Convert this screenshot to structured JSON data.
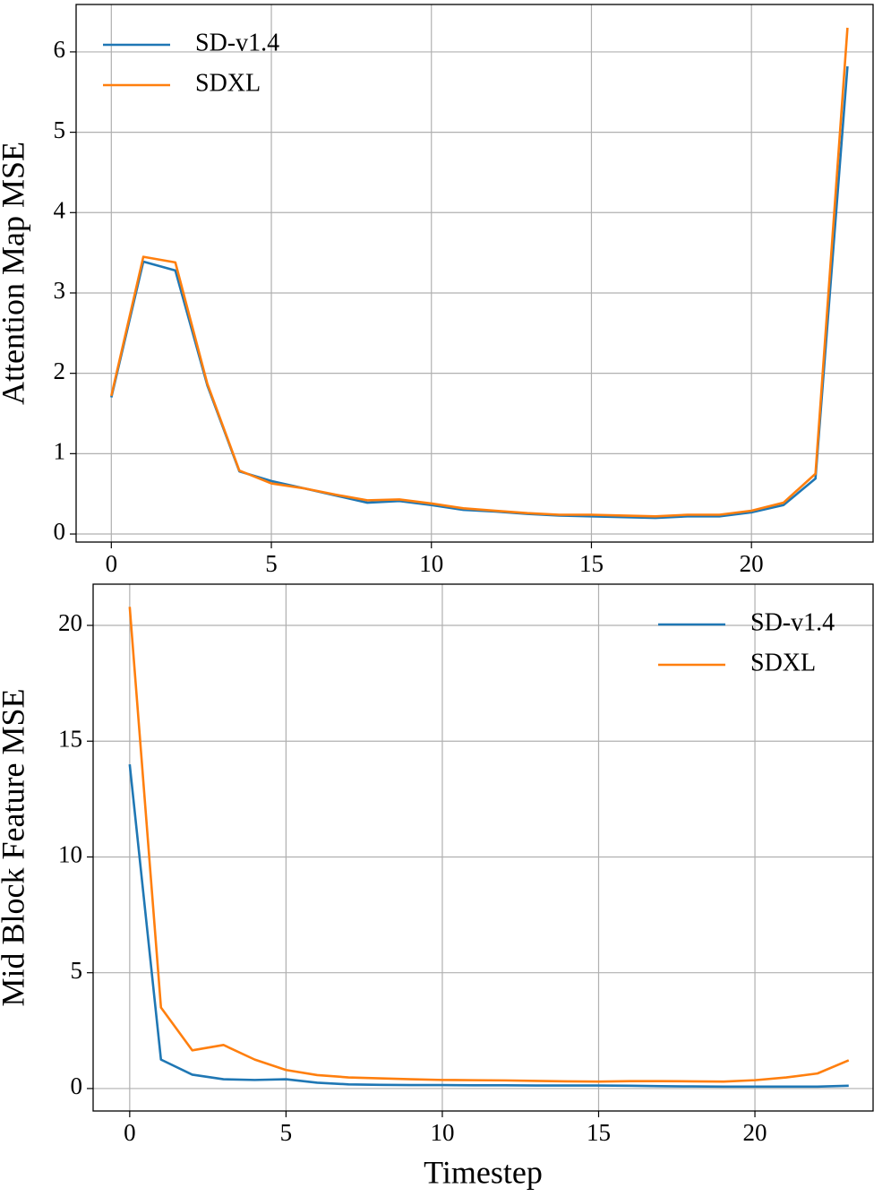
{
  "chart_data": [
    {
      "type": "line",
      "ylabel": "Attention Map MSE",
      "x": [
        0,
        1,
        2,
        3,
        4,
        5,
        6,
        7,
        8,
        9,
        10,
        11,
        12,
        13,
        14,
        15,
        16,
        17,
        18,
        19,
        20,
        21,
        22,
        23
      ],
      "series": [
        {
          "name": "SD-v1.4",
          "color": "#1f77b4",
          "values": [
            1.7,
            3.39,
            3.28,
            1.85,
            0.78,
            0.66,
            0.57,
            0.48,
            0.39,
            0.41,
            0.36,
            0.3,
            0.28,
            0.25,
            0.23,
            0.22,
            0.21,
            0.2,
            0.22,
            0.22,
            0.27,
            0.36,
            0.69,
            5.82
          ]
        },
        {
          "name": "SDXL",
          "color": "#ff7f0e",
          "values": [
            1.72,
            3.45,
            3.38,
            1.87,
            0.79,
            0.63,
            0.57,
            0.49,
            0.42,
            0.43,
            0.38,
            0.32,
            0.29,
            0.26,
            0.24,
            0.24,
            0.23,
            0.22,
            0.24,
            0.24,
            0.29,
            0.39,
            0.75,
            6.3
          ]
        }
      ],
      "xlim": [
        -1.1,
        23.8
      ],
      "xticks": [
        0,
        5,
        10,
        15,
        20
      ],
      "ylim": [
        -0.1,
        6.59
      ],
      "yticks": [
        0,
        1,
        2,
        3,
        4,
        5,
        6
      ],
      "grid": true,
      "legend": "upper left"
    },
    {
      "type": "line",
      "ylabel": "Mid Block Feature MSE",
      "xlabel": "Timestep",
      "x": [
        0,
        1,
        2,
        3,
        4,
        5,
        6,
        7,
        8,
        9,
        10,
        11,
        12,
        13,
        14,
        15,
        16,
        17,
        18,
        19,
        20,
        21,
        22,
        23
      ],
      "series": [
        {
          "name": "SD-v1.4",
          "color": "#1f77b4",
          "values": [
            14,
            1.25,
            0.6,
            0.4,
            0.37,
            0.4,
            0.25,
            0.18,
            0.16,
            0.15,
            0.15,
            0.14,
            0.14,
            0.13,
            0.13,
            0.13,
            0.12,
            0.1,
            0.09,
            0.08,
            0.08,
            0.08,
            0.08,
            0.12
          ]
        },
        {
          "name": "SDXL",
          "color": "#ff7f0e",
          "values": [
            20.8,
            3.5,
            1.65,
            1.88,
            1.25,
            0.8,
            0.58,
            0.48,
            0.44,
            0.4,
            0.37,
            0.36,
            0.35,
            0.33,
            0.31,
            0.3,
            0.32,
            0.32,
            0.31,
            0.3,
            0.36,
            0.48,
            0.65,
            1.22
          ]
        }
      ],
      "xlim": [
        -1.17,
        23.78
      ],
      "xticks": [
        0,
        5,
        10,
        15,
        20
      ],
      "ylim": [
        -0.97,
        21.78
      ],
      "yticks": [
        0,
        5,
        10,
        15,
        20
      ],
      "grid": true,
      "legend": "upper right"
    }
  ]
}
